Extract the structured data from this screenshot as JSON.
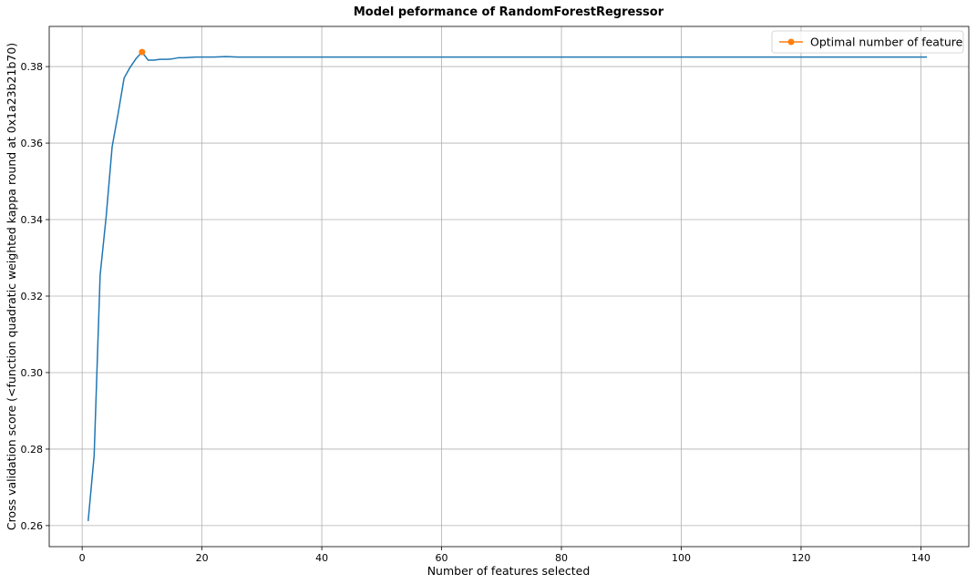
{
  "chart_data": {
    "type": "line",
    "title": "Model peformance of RandomForestRegressor",
    "xlabel": "Number of features selected",
    "ylabel": "Cross validation score (<function quadratic weighted kappa round at 0x1a23b21b70)",
    "xlim": [
      -5.5,
      148
    ],
    "ylim": [
      0.2545,
      0.3905
    ],
    "xticks": [
      0,
      20,
      40,
      60,
      80,
      100,
      120,
      140
    ],
    "yticks": [
      0.26,
      0.28,
      0.3,
      0.32,
      0.34,
      0.36,
      0.38
    ],
    "ytick_labels": [
      "0.26",
      "0.28",
      "0.30",
      "0.32",
      "0.34",
      "0.36",
      "0.38"
    ],
    "grid": true,
    "legend_position": "top-right",
    "series": [
      {
        "color": "#1f77b4",
        "x": [
          1,
          2,
          3,
          4,
          5,
          6,
          7,
          8,
          9,
          10,
          11,
          12,
          13,
          14,
          15,
          16,
          17,
          18,
          19,
          20,
          22,
          24,
          26,
          30,
          141
        ],
        "y": [
          0.2612,
          0.2783,
          0.3255,
          0.3407,
          0.359,
          0.3677,
          0.377,
          0.3798,
          0.3821,
          0.3838,
          0.3817,
          0.3817,
          0.3819,
          0.3819,
          0.382,
          0.3823,
          0.3823,
          0.3824,
          0.3825,
          0.3825,
          0.3825,
          0.3826,
          0.3825,
          0.3825,
          0.3825
        ]
      },
      {
        "name": "Optimal number of feature",
        "color": "#ff7f0e",
        "x": [
          10
        ],
        "y": [
          0.3838
        ]
      }
    ]
  }
}
